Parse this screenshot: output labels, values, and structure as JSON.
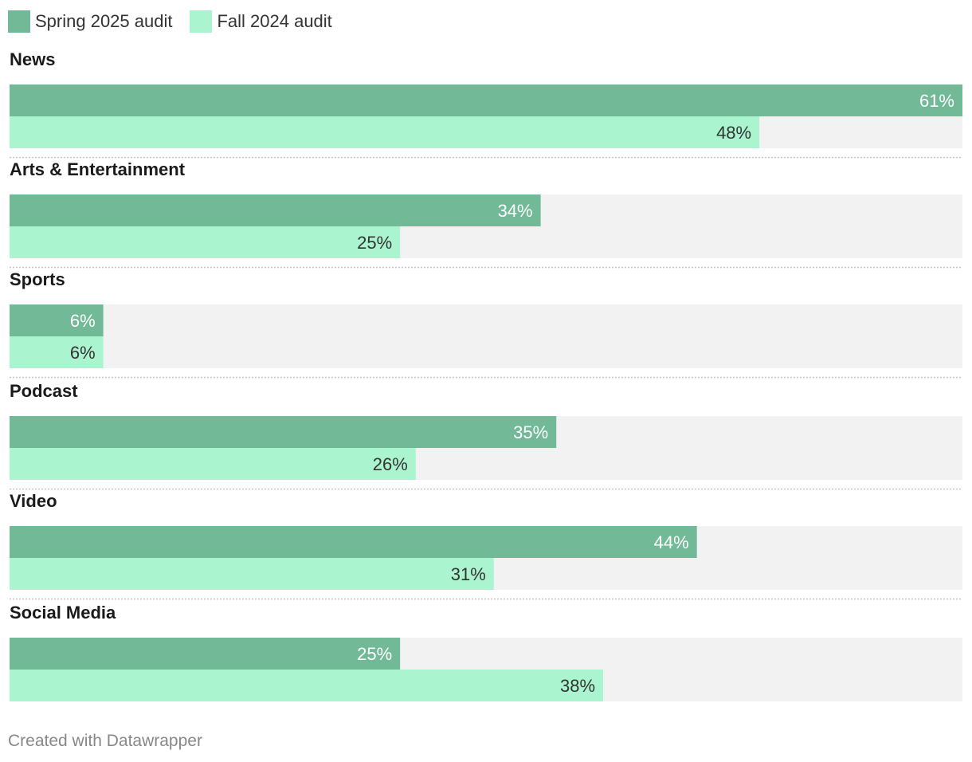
{
  "chart_data": {
    "type": "bar",
    "orientation": "horizontal",
    "grouped": true,
    "xlim": [
      0,
      61
    ],
    "categories": [
      "News",
      "Arts & Entertainment",
      "Sports",
      "Podcast",
      "Video",
      "Social Media"
    ],
    "series": [
      {
        "name": "Spring 2025 audit",
        "color": "#72b997",
        "label_color": "#ffffff",
        "values": [
          61,
          34,
          6,
          35,
          44,
          25
        ]
      },
      {
        "name": "Fall 2024 audit",
        "color": "#aaf5d0",
        "label_color": "#333333",
        "values": [
          48,
          25,
          6,
          26,
          31,
          38
        ]
      }
    ],
    "value_suffix": "%",
    "track_color": "#f2f2f2"
  },
  "footer": {
    "credit": "Created with Datawrapper"
  }
}
